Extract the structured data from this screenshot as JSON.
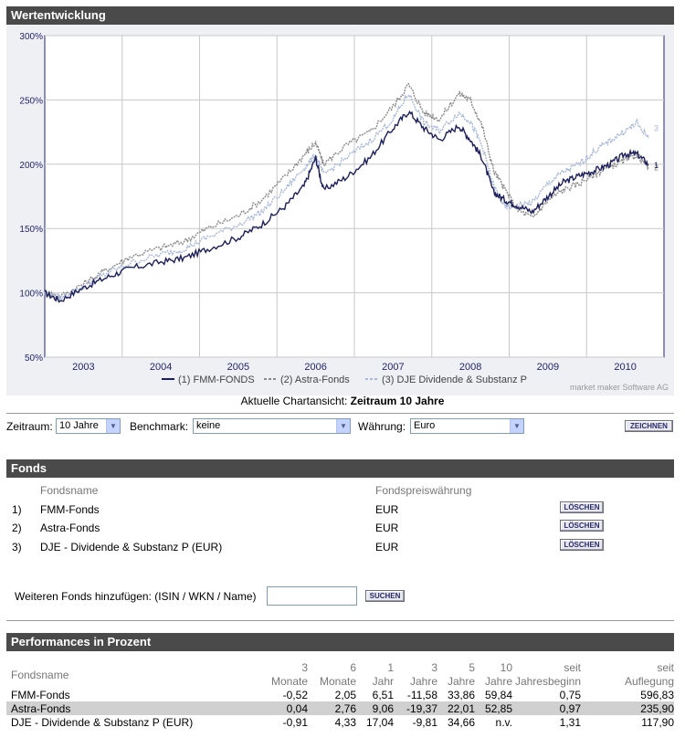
{
  "sections": {
    "wertentwicklung": "Wertentwicklung",
    "fonds": "Fonds",
    "performances": "Performances in Prozent"
  },
  "chart_data": {
    "type": "line",
    "title": "Wertentwicklung",
    "y_ticks": [
      "300%",
      "250%",
      "200%",
      "150%",
      "100%",
      "50%"
    ],
    "ylim": [
      50,
      300
    ],
    "x_ticks": [
      "2003",
      "2004",
      "2005",
      "2006",
      "2007",
      "2008",
      "2009",
      "2010"
    ],
    "x_tick_years": [
      2003.0,
      2004.0,
      2005.0,
      2006.0,
      2007.0,
      2008.0,
      2009.0,
      2010.0
    ],
    "xlim": [
      2002.5,
      2010.5
    ],
    "x": [
      2002.5,
      2002.7,
      2003.0,
      2003.3,
      2003.6,
      2004.0,
      2004.3,
      2004.6,
      2005.0,
      2005.3,
      2005.6,
      2005.85,
      2006.0,
      2006.1,
      2006.4,
      2006.7,
      2007.0,
      2007.2,
      2007.4,
      2007.6,
      2007.85,
      2008.0,
      2008.15,
      2008.3,
      2008.45,
      2008.6,
      2008.8,
      2009.0,
      2009.2,
      2009.4,
      2009.6,
      2009.8,
      2010.0,
      2010.15,
      2010.3
    ],
    "series": [
      {
        "name": "(1) FMM-FONDS",
        "marker": "1",
        "color": "#1c1f5c",
        "style": "solid",
        "values": [
          100,
          94,
          104,
          112,
          119,
          124,
          127,
          134,
          143,
          153,
          167,
          183,
          205,
          180,
          190,
          205,
          228,
          241,
          228,
          219,
          230,
          219,
          205,
          178,
          172,
          168,
          163,
          175,
          186,
          191,
          195,
          200,
          208,
          208,
          200
        ]
      },
      {
        "name": "(2) Astra-Fonds",
        "marker": "2",
        "color": "#8a8a8a",
        "style": "dashed",
        "values": [
          100,
          97,
          107,
          118,
          128,
          135,
          140,
          150,
          160,
          172,
          190,
          207,
          217,
          200,
          215,
          225,
          245,
          262,
          240,
          235,
          255,
          250,
          230,
          195,
          180,
          165,
          158,
          172,
          180,
          185,
          192,
          198,
          203,
          207,
          198
        ]
      },
      {
        "name": "(3) DJE Dividende & Substanz P",
        "marker": "3",
        "color": "#a8b8d8",
        "style": "dashed",
        "values": [
          100,
          96,
          105,
          115,
          123,
          130,
          134,
          143,
          153,
          163,
          180,
          197,
          207,
          192,
          205,
          218,
          235,
          255,
          232,
          226,
          240,
          233,
          214,
          183,
          166,
          168,
          170,
          185,
          194,
          200,
          210,
          218,
          226,
          232,
          220
        ]
      }
    ]
  },
  "chart_credit": "market maker Software AG",
  "chart_caption": {
    "prefix": "Aktuelle Chartansicht:",
    "value": "Zeitraum 10 Jahre"
  },
  "controls": {
    "zeitraum_label": "Zeitraum:",
    "zeitraum_value": "10 Jahre",
    "benchmark_label": "Benchmark:",
    "benchmark_value": "keine",
    "waehrung_label": "Währung:",
    "waehrung_value": "Euro",
    "zeichnen_button": "ZEICHNEN"
  },
  "fonds": {
    "col_name": "Fondsname",
    "col_currency": "Fondspreiswährung",
    "rows": [
      {
        "idx": "1)",
        "name": "FMM-Fonds",
        "currency": "EUR",
        "button": "LÖSCHEN"
      },
      {
        "idx": "2)",
        "name": "Astra-Fonds",
        "currency": "EUR",
        "button": "LÖSCHEN"
      },
      {
        "idx": "3)",
        "name": "DJE - Dividende & Substanz P (EUR)",
        "currency": "EUR",
        "button": "LÖSCHEN"
      }
    ],
    "add_label": "Weiteren Fonds hinzufügen: (ISIN / WKN / Name)",
    "add_placeholder": "",
    "search_button": "SUCHEN"
  },
  "performance": {
    "col_name": "Fondsname",
    "headers": [
      {
        "top": "3",
        "bottom": "Monate"
      },
      {
        "top": "6",
        "bottom": "Monate"
      },
      {
        "top": "1",
        "bottom": "Jahr"
      },
      {
        "top": "3",
        "bottom": "Jahre"
      },
      {
        "top": "5",
        "bottom": "Jahre"
      },
      {
        "top": "10",
        "bottom": "Jahre"
      },
      {
        "top": "seit",
        "bottom": "Jahresbeginn"
      },
      {
        "top": "seit",
        "bottom": "Auflegung"
      }
    ],
    "rows": [
      {
        "name": "FMM-Fonds",
        "values": [
          "-0,52",
          "2,05",
          "6,51",
          "-11,58",
          "33,86",
          "59,84",
          "0,75",
          "596,83"
        ]
      },
      {
        "name": "Astra-Fonds",
        "values": [
          "0,04",
          "2,76",
          "9,06",
          "-19,37",
          "22,01",
          "52,85",
          "0,97",
          "235,90"
        ]
      },
      {
        "name": "DJE - Dividende & Substanz P (EUR)",
        "values": [
          "-0,91",
          "4,33",
          "17,04",
          "-9,81",
          "34,66",
          "n.v.",
          "1,31",
          "117,90"
        ]
      }
    ]
  }
}
